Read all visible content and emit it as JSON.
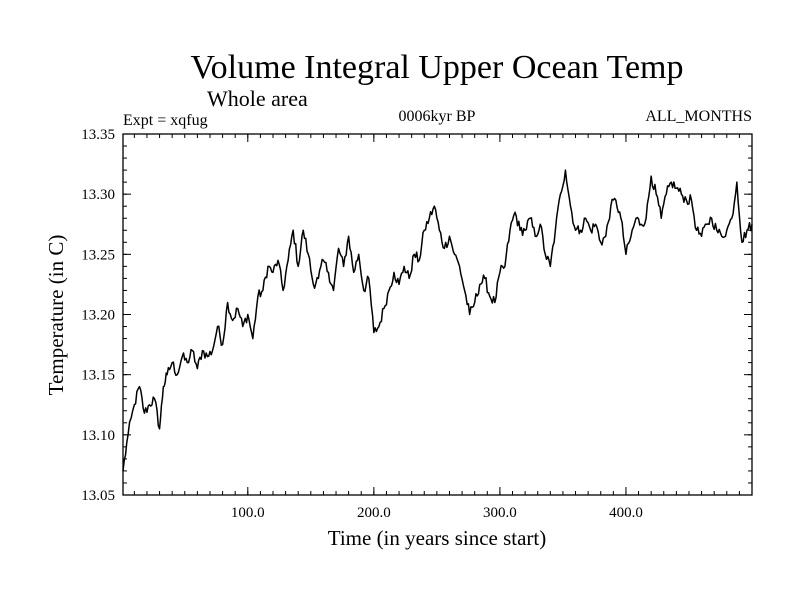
{
  "chart_data": {
    "type": "line",
    "title": "Volume Integral Upper Ocean Temp",
    "subtitle": "Whole area",
    "annotations": {
      "left": "Expt = xqfug",
      "center": "0006kyr BP",
      "right": "ALL_MONTHS"
    },
    "xlabel": "Time (in years since start)",
    "ylabel": "Temperature (in C)",
    "xlim": [
      1,
      500
    ],
    "ylim": [
      13.05,
      13.35
    ],
    "xticks": [
      100,
      200,
      300,
      400
    ],
    "xtick_labels": [
      "100.0",
      "200.0",
      "300.0",
      "400.0"
    ],
    "yticks": [
      13.05,
      13.1,
      13.15,
      13.2,
      13.25,
      13.3,
      13.35
    ],
    "ytick_labels": [
      "13.05",
      "13.10",
      "13.15",
      "13.20",
      "13.25",
      "13.30",
      "13.35"
    ],
    "grid": false,
    "series": [
      {
        "name": "Volume integral upper ocean temperature",
        "x": [
          1,
          5,
          10,
          14,
          18,
          22,
          26,
          30,
          33,
          36,
          40,
          44,
          48,
          52,
          56,
          60,
          64,
          68,
          72,
          76,
          80,
          84,
          88,
          92,
          96,
          100,
          104,
          108,
          112,
          116,
          120,
          124,
          128,
          132,
          136,
          140,
          144,
          148,
          152,
          156,
          160,
          164,
          168,
          172,
          176,
          180,
          184,
          188,
          192,
          196,
          200,
          204,
          208,
          212,
          216,
          220,
          224,
          228,
          232,
          236,
          240,
          244,
          248,
          252,
          256,
          260,
          264,
          268,
          272,
          276,
          280,
          284,
          288,
          292,
          296,
          300,
          304,
          308,
          312,
          316,
          320,
          324,
          328,
          332,
          336,
          340,
          344,
          348,
          352,
          356,
          360,
          364,
          368,
          372,
          376,
          380,
          384,
          388,
          392,
          396,
          400,
          404,
          408,
          412,
          416,
          420,
          424,
          428,
          432,
          436,
          440,
          444,
          448,
          452,
          456,
          460,
          464,
          468,
          472,
          476,
          480,
          484,
          488,
          492,
          496,
          500
        ],
        "values": [
          13.07,
          13.1,
          13.125,
          13.14,
          13.118,
          13.125,
          13.13,
          13.105,
          13.14,
          13.15,
          13.16,
          13.15,
          13.165,
          13.16,
          13.17,
          13.155,
          13.17,
          13.165,
          13.17,
          13.19,
          13.175,
          13.21,
          13.195,
          13.205,
          13.19,
          13.2,
          13.18,
          13.215,
          13.22,
          13.24,
          13.235,
          13.245,
          13.22,
          13.245,
          13.27,
          13.24,
          13.27,
          13.25,
          13.225,
          13.23,
          13.245,
          13.235,
          13.22,
          13.255,
          13.24,
          13.265,
          13.235,
          13.25,
          13.22,
          13.23,
          13.185,
          13.19,
          13.205,
          13.22,
          13.235,
          13.225,
          13.24,
          13.23,
          13.25,
          13.245,
          13.27,
          13.28,
          13.29,
          13.27,
          13.255,
          13.265,
          13.25,
          13.24,
          13.22,
          13.2,
          13.21,
          13.225,
          13.23,
          13.215,
          13.21,
          13.235,
          13.24,
          13.27,
          13.285,
          13.27,
          13.27,
          13.28,
          13.265,
          13.275,
          13.25,
          13.24,
          13.27,
          13.3,
          13.32,
          13.29,
          13.27,
          13.27,
          13.28,
          13.27,
          13.275,
          13.26,
          13.265,
          13.29,
          13.295,
          13.28,
          13.25,
          13.265,
          13.28,
          13.275,
          13.28,
          13.315,
          13.3,
          13.28,
          13.3,
          13.31,
          13.305,
          13.3,
          13.295,
          13.295,
          13.27,
          13.265,
          13.275,
          13.28,
          13.27,
          13.265,
          13.27,
          13.28,
          13.31,
          13.26,
          13.27,
          13.275
        ]
      }
    ]
  }
}
